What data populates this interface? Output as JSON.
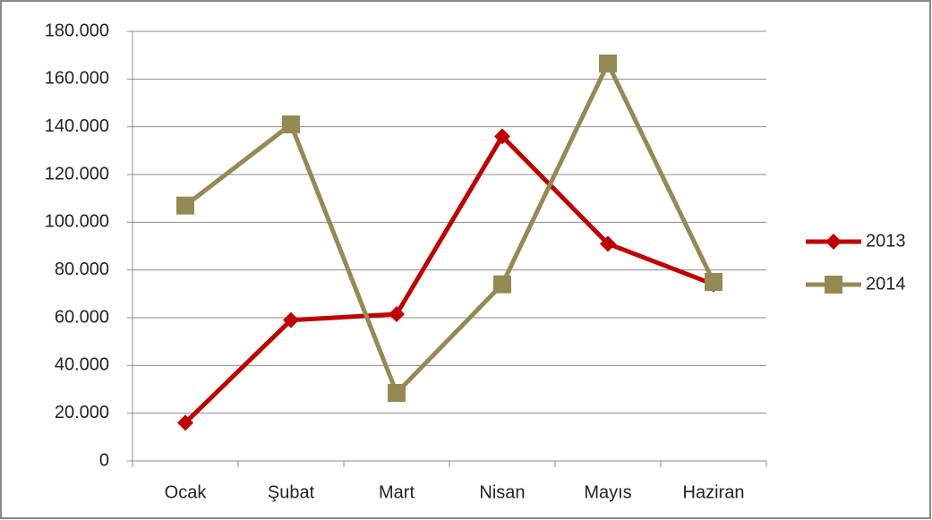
{
  "chart_data": {
    "type": "line",
    "categories": [
      "Ocak",
      "Şubat",
      "Mart",
      "Nisan",
      "Mayıs",
      "Haziran"
    ],
    "series": [
      {
        "name": "2013",
        "color": "#c00000",
        "marker": "diamond",
        "values": [
          16000,
          59000,
          61500,
          136000,
          91000,
          74000
        ]
      },
      {
        "name": "2014",
        "color": "#948a54",
        "marker": "square",
        "values": [
          107000,
          141000,
          28500,
          74000,
          166500,
          75000
        ]
      }
    ],
    "ylim": [
      0,
      180000
    ],
    "yticks": [
      0,
      {
        "value": 20000,
        "label": "20.000"
      },
      {
        "value": 40000,
        "label": "40.000"
      },
      {
        "value": 60000,
        "label": "60.000"
      },
      {
        "value": 80000,
        "label": "80.000"
      },
      {
        "value": 100000,
        "label": "100.000"
      },
      {
        "value": 120000,
        "label": "120.000"
      },
      {
        "value": 140000,
        "label": "140.000"
      },
      {
        "value": 160000,
        "label": "160.000"
      },
      {
        "value": 180000,
        "label": "180.000"
      }
    ],
    "grid": true,
    "legend": "right"
  }
}
